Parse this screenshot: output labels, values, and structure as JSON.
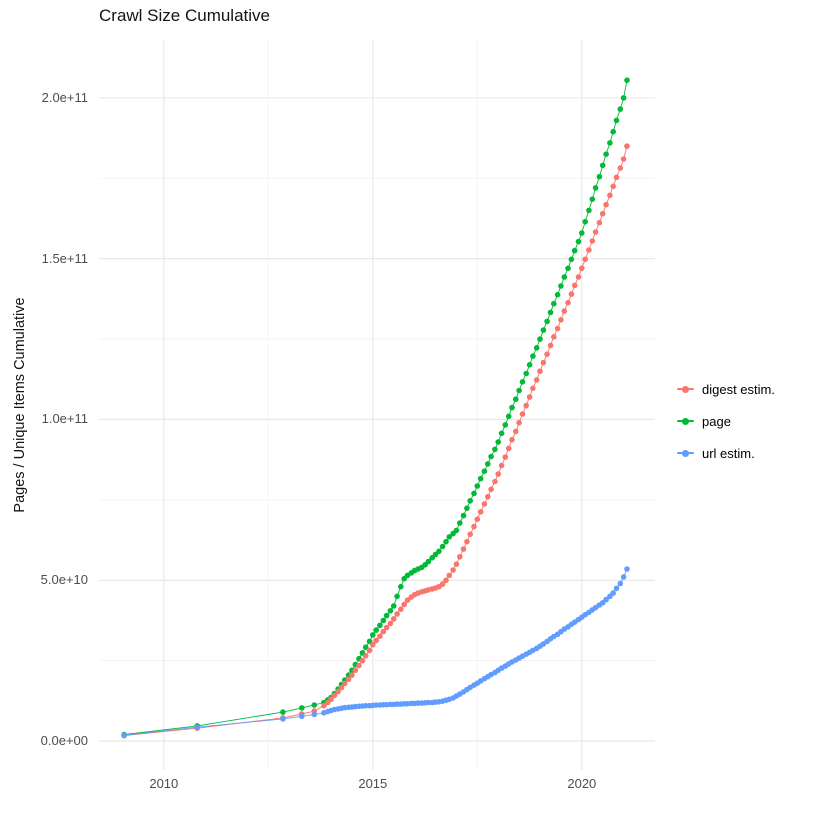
{
  "colors": {
    "background": "#ffffff",
    "grid_major": "#e7e7e7",
    "grid_minor": "#f2f2f2",
    "axis_text": "#4d4d4d",
    "title_text": "#141414"
  },
  "chart_data": {
    "type": "scatter",
    "title": "Crawl Size Cumulative",
    "xlabel": "",
    "ylabel": "Pages / Unique Items Cumulative",
    "grid": "on",
    "legend_position": "right",
    "xlim": [
      2008.45,
      2021.75
    ],
    "ylim": [
      -9000000000.0,
      218000000000.0
    ],
    "x_ticks": [
      {
        "value": 2010,
        "label": "2010"
      },
      {
        "value": 2015,
        "label": "2015"
      },
      {
        "value": 2020,
        "label": "2020"
      }
    ],
    "y_ticks": [
      {
        "value": 0,
        "label": "0.0e+00"
      },
      {
        "value": 50000000000.0,
        "label": "5.0e+10"
      },
      {
        "value": 100000000000.0,
        "label": "1.0e+11"
      },
      {
        "value": 150000000000.0,
        "label": "1.5e+11"
      },
      {
        "value": 200000000000.0,
        "label": "2.0e+11"
      }
    ],
    "x_minor": [
      2012.5,
      2017.5
    ],
    "y_minor": [
      25000000000.0,
      75000000000.0,
      125000000000.0,
      175000000000.0
    ],
    "y_unit": 1000000000.0,
    "draw_order": [
      1,
      0,
      2
    ],
    "series": [
      {
        "name": "digest estim.",
        "color": "#F8766D",
        "points": [
          [
            2009.05,
            1.7
          ],
          [
            2010.8,
            4.0
          ],
          [
            2012.85,
            7.2
          ],
          [
            2013.3,
            8.4
          ],
          [
            2013.6,
            9.3
          ],
          [
            2013.83,
            11.0
          ],
          [
            2013.92,
            12.0
          ],
          [
            2014.0,
            13.0
          ],
          [
            2014.08,
            14.2
          ],
          [
            2014.17,
            15.4
          ],
          [
            2014.25,
            16.6
          ],
          [
            2014.33,
            17.9
          ],
          [
            2014.42,
            19.2
          ],
          [
            2014.5,
            20.5
          ],
          [
            2014.58,
            22.0
          ],
          [
            2014.67,
            23.5
          ],
          [
            2014.75,
            25.0
          ],
          [
            2014.83,
            26.5
          ],
          [
            2014.92,
            28.2
          ],
          [
            2015.0,
            30.0
          ],
          [
            2015.08,
            31.3
          ],
          [
            2015.17,
            32.6
          ],
          [
            2015.25,
            34.0
          ],
          [
            2015.33,
            35.3
          ],
          [
            2015.42,
            36.6
          ],
          [
            2015.5,
            38.0
          ],
          [
            2015.58,
            39.5
          ],
          [
            2015.67,
            41.0
          ],
          [
            2015.75,
            42.5
          ],
          [
            2015.83,
            43.8
          ],
          [
            2015.92,
            44.8
          ],
          [
            2016.0,
            45.5
          ],
          [
            2016.08,
            46.0
          ],
          [
            2016.17,
            46.4
          ],
          [
            2016.25,
            46.7
          ],
          [
            2016.33,
            47.0
          ],
          [
            2016.42,
            47.3
          ],
          [
            2016.5,
            47.6
          ],
          [
            2016.58,
            48.0
          ],
          [
            2016.67,
            48.8
          ],
          [
            2016.75,
            50.0
          ],
          [
            2016.83,
            51.5
          ],
          [
            2016.92,
            53.2
          ],
          [
            2017.0,
            55.0
          ],
          [
            2017.08,
            57.3
          ],
          [
            2017.17,
            59.7
          ],
          [
            2017.25,
            62.0
          ],
          [
            2017.33,
            64.3
          ],
          [
            2017.42,
            66.7
          ],
          [
            2017.5,
            69.0
          ],
          [
            2017.58,
            71.3
          ],
          [
            2017.67,
            73.7
          ],
          [
            2017.75,
            76.0
          ],
          [
            2017.83,
            78.3
          ],
          [
            2017.92,
            80.7
          ],
          [
            2018.0,
            83.0
          ],
          [
            2018.08,
            85.7
          ],
          [
            2018.17,
            88.3
          ],
          [
            2018.25,
            91.0
          ],
          [
            2018.33,
            93.7
          ],
          [
            2018.42,
            96.3
          ],
          [
            2018.5,
            99.0
          ],
          [
            2018.58,
            101.7
          ],
          [
            2018.67,
            104.3
          ],
          [
            2018.75,
            107.0
          ],
          [
            2018.83,
            109.7
          ],
          [
            2018.92,
            112.3
          ],
          [
            2019.0,
            115.0
          ],
          [
            2019.08,
            117.7
          ],
          [
            2019.17,
            120.3
          ],
          [
            2019.25,
            123.0
          ],
          [
            2019.33,
            125.7
          ],
          [
            2019.42,
            128.3
          ],
          [
            2019.5,
            131.0
          ],
          [
            2019.58,
            133.7
          ],
          [
            2019.67,
            136.3
          ],
          [
            2019.75,
            139.0
          ],
          [
            2019.83,
            141.7
          ],
          [
            2019.92,
            144.3
          ],
          [
            2020.0,
            147.0
          ],
          [
            2020.08,
            149.8
          ],
          [
            2020.17,
            152.7
          ],
          [
            2020.25,
            155.5
          ],
          [
            2020.33,
            158.3
          ],
          [
            2020.42,
            161.2
          ],
          [
            2020.5,
            164.0
          ],
          [
            2020.58,
            166.8
          ],
          [
            2020.67,
            169.7
          ],
          [
            2020.75,
            172.5
          ],
          [
            2020.83,
            175.3
          ],
          [
            2020.92,
            178.2
          ],
          [
            2021.0,
            181.0
          ],
          [
            2021.08,
            185.0
          ]
        ]
      },
      {
        "name": "page",
        "color": "#00BA38",
        "points": [
          [
            2009.05,
            2.0
          ],
          [
            2010.8,
            4.7
          ],
          [
            2012.85,
            9.0
          ],
          [
            2013.3,
            10.3
          ],
          [
            2013.6,
            11.2
          ],
          [
            2013.83,
            12.0
          ],
          [
            2013.92,
            12.8
          ],
          [
            2014.0,
            13.5
          ],
          [
            2014.08,
            14.8
          ],
          [
            2014.17,
            16.2
          ],
          [
            2014.25,
            17.6
          ],
          [
            2014.33,
            19.0
          ],
          [
            2014.42,
            20.5
          ],
          [
            2014.5,
            22.0
          ],
          [
            2014.58,
            23.8
          ],
          [
            2014.67,
            25.6
          ],
          [
            2014.75,
            27.4
          ],
          [
            2014.83,
            29.2
          ],
          [
            2014.92,
            31.0
          ],
          [
            2015.0,
            33.0
          ],
          [
            2015.08,
            34.5
          ],
          [
            2015.17,
            36.0
          ],
          [
            2015.25,
            37.5
          ],
          [
            2015.33,
            39.0
          ],
          [
            2015.42,
            40.5
          ],
          [
            2015.5,
            42.0
          ],
          [
            2015.58,
            45.0
          ],
          [
            2015.67,
            48.0
          ],
          [
            2015.75,
            50.5
          ],
          [
            2015.83,
            51.5
          ],
          [
            2015.92,
            52.3
          ],
          [
            2016.0,
            53.0
          ],
          [
            2016.08,
            53.5
          ],
          [
            2016.17,
            54.0
          ],
          [
            2016.25,
            54.8
          ],
          [
            2016.33,
            55.8
          ],
          [
            2016.42,
            57.0
          ],
          [
            2016.5,
            58.0
          ],
          [
            2016.58,
            59.0
          ],
          [
            2016.67,
            60.5
          ],
          [
            2016.75,
            62.0
          ],
          [
            2016.83,
            63.5
          ],
          [
            2016.92,
            64.5
          ],
          [
            2017.0,
            65.5
          ],
          [
            2017.08,
            67.8
          ],
          [
            2017.17,
            70.1
          ],
          [
            2017.25,
            72.4
          ],
          [
            2017.33,
            74.7
          ],
          [
            2017.42,
            77.0
          ],
          [
            2017.5,
            79.3
          ],
          [
            2017.58,
            81.6
          ],
          [
            2017.67,
            83.9
          ],
          [
            2017.75,
            86.2
          ],
          [
            2017.83,
            88.5
          ],
          [
            2017.92,
            90.7
          ],
          [
            2018.0,
            93.0
          ],
          [
            2018.08,
            95.7
          ],
          [
            2018.17,
            98.3
          ],
          [
            2018.25,
            101.0
          ],
          [
            2018.33,
            103.7
          ],
          [
            2018.42,
            106.3
          ],
          [
            2018.5,
            109.0
          ],
          [
            2018.58,
            111.7
          ],
          [
            2018.67,
            114.3
          ],
          [
            2018.75,
            117.0
          ],
          [
            2018.83,
            119.7
          ],
          [
            2018.92,
            122.3
          ],
          [
            2019.0,
            125.0
          ],
          [
            2019.08,
            127.8
          ],
          [
            2019.17,
            130.5
          ],
          [
            2019.25,
            133.3
          ],
          [
            2019.33,
            136.0
          ],
          [
            2019.42,
            138.8
          ],
          [
            2019.5,
            141.5
          ],
          [
            2019.58,
            144.3
          ],
          [
            2019.67,
            147.0
          ],
          [
            2019.75,
            149.8
          ],
          [
            2019.83,
            152.5
          ],
          [
            2019.92,
            155.3
          ],
          [
            2020.0,
            158.0
          ],
          [
            2020.08,
            161.5
          ],
          [
            2020.17,
            165.0
          ],
          [
            2020.25,
            168.5
          ],
          [
            2020.33,
            172.0
          ],
          [
            2020.42,
            175.5
          ],
          [
            2020.5,
            179.0
          ],
          [
            2020.58,
            182.5
          ],
          [
            2020.67,
            186.0
          ],
          [
            2020.75,
            189.5
          ],
          [
            2020.83,
            193.0
          ],
          [
            2020.92,
            196.5
          ],
          [
            2021.0,
            200.0
          ],
          [
            2021.08,
            205.5
          ]
        ]
      },
      {
        "name": "url estim.",
        "color": "#619CFF",
        "points": [
          [
            2009.05,
            1.8
          ],
          [
            2010.8,
            4.3
          ],
          [
            2012.85,
            6.9
          ],
          [
            2013.3,
            7.7
          ],
          [
            2013.6,
            8.3
          ],
          [
            2013.83,
            8.8
          ],
          [
            2013.92,
            9.2
          ],
          [
            2014.0,
            9.5
          ],
          [
            2014.08,
            9.8
          ],
          [
            2014.17,
            10.0
          ],
          [
            2014.25,
            10.2
          ],
          [
            2014.33,
            10.4
          ],
          [
            2014.42,
            10.5
          ],
          [
            2014.5,
            10.6
          ],
          [
            2014.58,
            10.7
          ],
          [
            2014.67,
            10.8
          ],
          [
            2014.75,
            10.9
          ],
          [
            2014.83,
            11.0
          ],
          [
            2014.92,
            11.0
          ],
          [
            2015.0,
            11.1
          ],
          [
            2015.08,
            11.2
          ],
          [
            2015.17,
            11.2
          ],
          [
            2015.25,
            11.3
          ],
          [
            2015.33,
            11.3
          ],
          [
            2015.42,
            11.4
          ],
          [
            2015.5,
            11.4
          ],
          [
            2015.58,
            11.5
          ],
          [
            2015.67,
            11.5
          ],
          [
            2015.75,
            11.6
          ],
          [
            2015.83,
            11.6
          ],
          [
            2015.92,
            11.7
          ],
          [
            2016.0,
            11.7
          ],
          [
            2016.08,
            11.8
          ],
          [
            2016.17,
            11.8
          ],
          [
            2016.25,
            11.9
          ],
          [
            2016.33,
            12.0
          ],
          [
            2016.42,
            12.0
          ],
          [
            2016.5,
            12.1
          ],
          [
            2016.58,
            12.2
          ],
          [
            2016.67,
            12.4
          ],
          [
            2016.75,
            12.7
          ],
          [
            2016.83,
            13.0
          ],
          [
            2016.92,
            13.4
          ],
          [
            2017.0,
            14.0
          ],
          [
            2017.08,
            14.6
          ],
          [
            2017.17,
            15.3
          ],
          [
            2017.25,
            16.0
          ],
          [
            2017.33,
            16.7
          ],
          [
            2017.42,
            17.4
          ],
          [
            2017.5,
            18.0
          ],
          [
            2017.58,
            18.7
          ],
          [
            2017.67,
            19.4
          ],
          [
            2017.75,
            20.0
          ],
          [
            2017.83,
            20.7
          ],
          [
            2017.92,
            21.3
          ],
          [
            2018.0,
            22.0
          ],
          [
            2018.08,
            22.7
          ],
          [
            2018.17,
            23.3
          ],
          [
            2018.25,
            24.0
          ],
          [
            2018.33,
            24.6
          ],
          [
            2018.42,
            25.2
          ],
          [
            2018.5,
            25.8
          ],
          [
            2018.58,
            26.4
          ],
          [
            2018.67,
            27.0
          ],
          [
            2018.75,
            27.6
          ],
          [
            2018.83,
            28.2
          ],
          [
            2018.92,
            28.8
          ],
          [
            2019.0,
            29.5
          ],
          [
            2019.08,
            30.2
          ],
          [
            2019.17,
            31.0
          ],
          [
            2019.25,
            31.8
          ],
          [
            2019.33,
            32.5
          ],
          [
            2019.42,
            33.2
          ],
          [
            2019.5,
            34.0
          ],
          [
            2019.58,
            34.8
          ],
          [
            2019.67,
            35.5
          ],
          [
            2019.75,
            36.3
          ],
          [
            2019.83,
            37.0
          ],
          [
            2019.92,
            37.8
          ],
          [
            2020.0,
            38.5
          ],
          [
            2020.08,
            39.3
          ],
          [
            2020.17,
            40.0
          ],
          [
            2020.25,
            40.8
          ],
          [
            2020.33,
            41.5
          ],
          [
            2020.42,
            42.3
          ],
          [
            2020.5,
            43.0
          ],
          [
            2020.58,
            44.0
          ],
          [
            2020.67,
            45.0
          ],
          [
            2020.75,
            46.0
          ],
          [
            2020.83,
            47.5
          ],
          [
            2020.92,
            49.0
          ],
          [
            2021.0,
            51.0
          ],
          [
            2021.08,
            53.5
          ]
        ]
      }
    ]
  }
}
